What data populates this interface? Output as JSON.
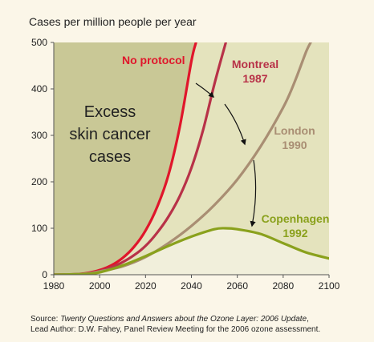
{
  "chart_data": {
    "type": "line",
    "ylabel": "Cases per million people per year",
    "xlim": [
      1980,
      2100
    ],
    "ylim": [
      0,
      500
    ],
    "x_ticks": [
      "1980",
      "2000",
      "2020",
      "2040",
      "2060",
      "2080",
      "2100"
    ],
    "y_ticks": [
      "0",
      "100",
      "200",
      "300",
      "400",
      "500"
    ],
    "grid": false,
    "shaded_region_label": [
      "Excess",
      "skin cancer",
      "cases"
    ],
    "series": [
      {
        "name": "No protocol",
        "color": "#e0162b",
        "x": [
          1980,
          1990,
          1995,
          2000,
          2005,
          2010,
          2015,
          2020,
          2025,
          2030,
          2035,
          2040,
          2042
        ],
        "y": [
          0,
          1,
          4,
          10,
          20,
          36,
          60,
          95,
          145,
          215,
          320,
          460,
          500
        ]
      },
      {
        "name": "Montreal",
        "label_lines": [
          "Montreal",
          "1987"
        ],
        "color": "#b83248",
        "x": [
          1980,
          1990,
          1995,
          2000,
          2005,
          2010,
          2015,
          2020,
          2025,
          2030,
          2035,
          2040,
          2045,
          2050,
          2055
        ],
        "y": [
          0,
          1,
          3,
          8,
          16,
          27,
          42,
          62,
          90,
          125,
          170,
          230,
          310,
          410,
          500
        ]
      },
      {
        "name": "London",
        "label_lines": [
          "London",
          "1990"
        ],
        "color": "#a98e73",
        "x": [
          1980,
          1990,
          1995,
          2000,
          2010,
          2020,
          2030,
          2040,
          2050,
          2060,
          2070,
          2080,
          2085,
          2090,
          2092
        ],
        "y": [
          0,
          1,
          3,
          7,
          18,
          38,
          68,
          105,
          150,
          205,
          275,
          360,
          415,
          480,
          500
        ]
      },
      {
        "name": "Copenhagen",
        "label_lines": [
          "Copenhagen",
          "1992"
        ],
        "color": "#8aa11c",
        "x": [
          1980,
          1990,
          1995,
          2000,
          2010,
          2020,
          2030,
          2040,
          2050,
          2055,
          2060,
          2070,
          2080,
          2090,
          2100
        ],
        "y": [
          0,
          1,
          2,
          5,
          20,
          40,
          62,
          82,
          98,
          100,
          98,
          88,
          68,
          48,
          35
        ]
      }
    ]
  },
  "header": {
    "ylabel_text": "Cases per million people per year"
  },
  "source": {
    "prefix": "Source:  ",
    "title": "Twenty Questions and Answers about the Ozone Layer: 2006 Update",
    "suffix": ",",
    "line2": "Lead Author: D.W. Fahey, Panel Review Meeting for the 2006 ozone assessment."
  },
  "colors": {
    "excess_fill": "#c9c896",
    "between_fill": "#e4e3bd",
    "outer_fill": "#f1efdb",
    "axis": "#555555",
    "text": "#222222"
  }
}
